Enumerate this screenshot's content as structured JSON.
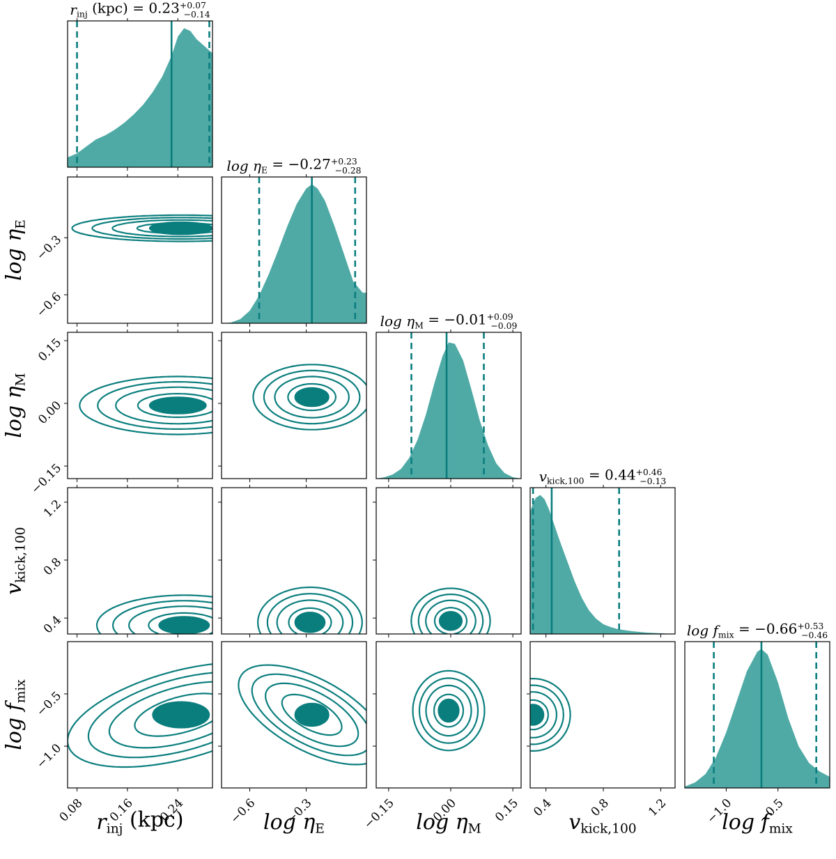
{
  "chart_data": {
    "type": "corner",
    "color": "#0a7d7d",
    "fill_color": "#4faaa6",
    "parameters": [
      {
        "id": "rinj",
        "label": "r",
        "label_sub": "inj",
        "label_suffix": " (kpc)",
        "range": [
          0.065,
          0.295
        ],
        "ticks": [
          0.08,
          0.16,
          0.24
        ],
        "tick_labels": [
          "0.08",
          "0.16",
          "0.24"
        ],
        "median": 0.23,
        "err_plus": "+0.07",
        "err_minus": "−0.14",
        "title_value": "0.23",
        "q_low": 0.08,
        "q_high": 0.29,
        "hist_x": [
          0.065,
          0.08,
          0.095,
          0.11,
          0.125,
          0.14,
          0.155,
          0.17,
          0.185,
          0.2,
          0.215,
          0.23,
          0.24,
          0.25,
          0.26,
          0.27,
          0.28,
          0.295
        ],
        "hist_y": [
          0.07,
          0.1,
          0.15,
          0.2,
          0.23,
          0.27,
          0.32,
          0.38,
          0.45,
          0.54,
          0.65,
          0.8,
          0.94,
          1.0,
          0.98,
          0.92,
          0.88,
          0.82
        ]
      },
      {
        "id": "etaE",
        "label": "log η",
        "label_sub": "E",
        "label_suffix": "",
        "range": [
          -0.75,
          0.02
        ],
        "ticks": [
          -0.6,
          -0.3
        ],
        "tick_labels": [
          "−0.6",
          "−0.3"
        ],
        "median": -0.27,
        "err_plus": "+0.23",
        "err_minus": "−0.28",
        "title_value": "−0.27",
        "q_low": -0.55,
        "q_high": -0.04,
        "hist_x": [
          -0.75,
          -0.7,
          -0.65,
          -0.6,
          -0.55,
          -0.5,
          -0.45,
          -0.4,
          -0.35,
          -0.3,
          -0.27,
          -0.24,
          -0.2,
          -0.15,
          -0.1,
          -0.05,
          0.0,
          0.02
        ],
        "hist_y": [
          0.0,
          0.005,
          0.03,
          0.09,
          0.2,
          0.35,
          0.52,
          0.7,
          0.86,
          0.97,
          1.0,
          0.97,
          0.88,
          0.7,
          0.5,
          0.3,
          0.22,
          0.22
        ]
      },
      {
        "id": "etaM",
        "label": "log η",
        "label_sub": "M",
        "label_suffix": "",
        "range": [
          -0.18,
          0.17
        ],
        "ticks": [
          -0.15,
          0.0,
          0.15
        ],
        "tick_labels": [
          "−0.15",
          "0.00",
          "0.15"
        ],
        "median": -0.01,
        "err_plus": "+0.09",
        "err_minus": "−0.09",
        "title_value": "−0.01",
        "q_low": -0.095,
        "q_high": 0.08,
        "hist_x": [
          -0.18,
          -0.16,
          -0.14,
          -0.12,
          -0.1,
          -0.08,
          -0.06,
          -0.04,
          -0.02,
          -0.005,
          0.01,
          0.03,
          0.05,
          0.07,
          0.09,
          0.11,
          0.13,
          0.15,
          0.17
        ],
        "hist_y": [
          0.0,
          0.01,
          0.03,
          0.07,
          0.15,
          0.28,
          0.46,
          0.68,
          0.88,
          0.98,
          0.97,
          0.85,
          0.64,
          0.42,
          0.24,
          0.11,
          0.04,
          0.01,
          0.0
        ]
      },
      {
        "id": "vkick",
        "label": "v",
        "label_sub": "kick,100",
        "label_suffix": "",
        "range": [
          0.29,
          1.3
        ],
        "ticks": [
          0.4,
          0.8,
          1.2
        ],
        "tick_labels": [
          "0.4",
          "0.8",
          "1.2"
        ],
        "median": 0.44,
        "err_plus": "+0.46",
        "err_minus": "−0.13",
        "title_value": "0.44",
        "q_low": 0.31,
        "q_high": 0.91,
        "hist_x": [
          0.29,
          0.31,
          0.33,
          0.36,
          0.39,
          0.42,
          0.46,
          0.5,
          0.55,
          0.6,
          0.65,
          0.7,
          0.75,
          0.8,
          0.85,
          0.9,
          1.0,
          1.1,
          1.2,
          1.3
        ],
        "hist_y": [
          0.88,
          0.94,
          0.98,
          1.0,
          0.97,
          0.9,
          0.78,
          0.66,
          0.52,
          0.38,
          0.26,
          0.17,
          0.11,
          0.07,
          0.05,
          0.035,
          0.02,
          0.01,
          0.005,
          0.0
        ]
      },
      {
        "id": "fmix",
        "label": "log f",
        "label_sub": "mix",
        "label_suffix": "",
        "range": [
          -1.4,
          0.0
        ],
        "ticks": [
          -1.0,
          -0.5
        ],
        "tick_labels": [
          "−1.0",
          "−0.5"
        ],
        "median": -0.66,
        "err_plus": "+0.53",
        "err_minus": "−0.46",
        "title_value": "−0.66",
        "q_low": -1.12,
        "q_high": -0.13,
        "hist_x": [
          -1.4,
          -1.3,
          -1.2,
          -1.1,
          -1.0,
          -0.9,
          -0.8,
          -0.7,
          -0.66,
          -0.6,
          -0.5,
          -0.4,
          -0.3,
          -0.2,
          -0.1,
          0.0
        ],
        "hist_y": [
          0.01,
          0.04,
          0.1,
          0.22,
          0.4,
          0.62,
          0.84,
          0.98,
          1.0,
          0.96,
          0.76,
          0.5,
          0.3,
          0.18,
          0.12,
          0.08
        ]
      }
    ],
    "contours": [
      {
        "row": 1,
        "col": 0,
        "center": [
          0.245,
          -0.25
        ],
        "sigmas": [
          0.1,
          0.04
        ],
        "levels": [
          0.5,
          1.2,
          2.0,
          3.0
        ],
        "skew": 0.0
      },
      {
        "row": 2,
        "col": 0,
        "center": [
          0.24,
          -0.005
        ],
        "sigmas": [
          0.09,
          0.04
        ],
        "levels": [
          0.5,
          1.2,
          2.0,
          3.0
        ],
        "skew": 0.0
      },
      {
        "row": 2,
        "col": 1,
        "center": [
          -0.27,
          0.015
        ],
        "sigmas": [
          0.18,
          0.045
        ],
        "levels": [
          0.5,
          1.2,
          2.0,
          3.0
        ],
        "skew": 0.0
      },
      {
        "row": 3,
        "col": 0,
        "center": [
          0.25,
          0.35
        ],
        "sigmas": [
          0.08,
          0.12
        ],
        "levels": [
          0.5,
          1.2,
          2.0,
          3.0
        ],
        "skew": 0.0
      },
      {
        "row": 3,
        "col": 1,
        "center": [
          -0.28,
          0.37
        ],
        "sigmas": [
          0.16,
          0.14
        ],
        "levels": [
          0.5,
          1.2,
          2.0,
          3.0
        ],
        "skew": 0.0
      },
      {
        "row": 3,
        "col": 2,
        "center": [
          0.0,
          0.38
        ],
        "sigmas": [
          0.055,
          0.13
        ],
        "levels": [
          0.5,
          1.2,
          2.0,
          3.0
        ],
        "skew": 0.0
      },
      {
        "row": 4,
        "col": 0,
        "center": [
          0.245,
          -0.7
        ],
        "sigmas": [
          0.09,
          0.25
        ],
        "levels": [
          0.5,
          1.2,
          2.0,
          3.0
        ],
        "skew": 0.5
      },
      {
        "row": 4,
        "col": 1,
        "center": [
          -0.27,
          -0.7
        ],
        "sigmas": [
          0.18,
          0.22
        ],
        "levels": [
          0.5,
          1.2,
          2.0,
          3.0
        ],
        "skew": -0.6
      },
      {
        "row": 4,
        "col": 2,
        "center": [
          -0.005,
          -0.66
        ],
        "sigmas": [
          0.05,
          0.22
        ],
        "levels": [
          0.5,
          1.2,
          2.0,
          3.0
        ],
        "skew": 0.0
      },
      {
        "row": 4,
        "col": 3,
        "center": [
          0.31,
          -0.7
        ],
        "sigmas": [
          0.15,
          0.2
        ],
        "levels": [
          0.5,
          1.2,
          2.0,
          3.0
        ],
        "skew": 0.0
      }
    ]
  }
}
